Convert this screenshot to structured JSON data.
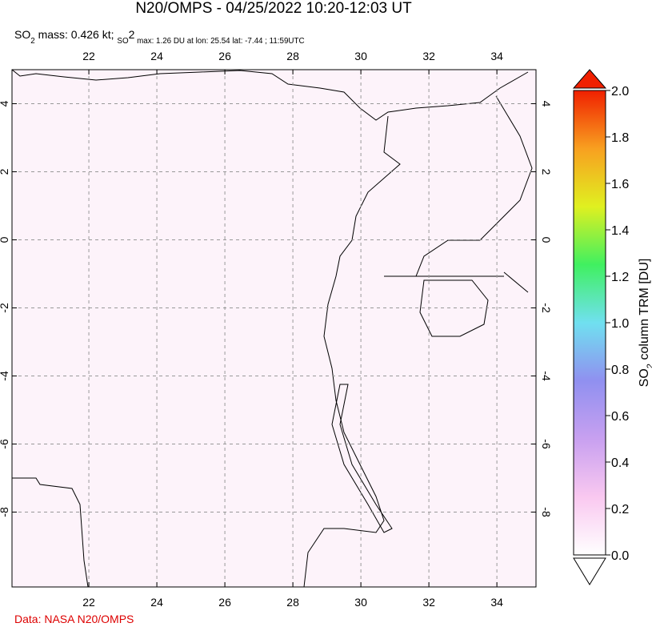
{
  "chart_data": {
    "type": "map",
    "title": "N20/OMPS - 04/25/2022 10:20-12:03 UT",
    "subtitle": [
      "SO",
      "2",
      " mass: 0.426 kt; ",
      "SO",
      "2",
      " max: 1.26 DU at lon: 25.54 lat: -7.44 ; 11:59UTC"
    ],
    "xlim": [
      19.74,
      35.15
    ],
    "ylim": [
      -10.2,
      5
    ],
    "xticks": [
      22,
      24,
      26,
      28,
      30,
      32,
      34
    ],
    "yticks": [
      -8,
      -6,
      -4,
      -2,
      0,
      2,
      4
    ],
    "grid": true,
    "colorbar": {
      "label": [
        "SO",
        "2",
        " column TRM [DU]"
      ],
      "lim": [
        0,
        2
      ],
      "ticks": [
        {
          "value": 0,
          "label": "0.0"
        },
        {
          "value": 0.2,
          "label": "0.2"
        },
        {
          "value": 0.4,
          "label": "0.4"
        },
        {
          "value": 0.6,
          "label": "0.6"
        },
        {
          "value": 0.8,
          "label": "0.8"
        },
        {
          "value": 1,
          "label": "1.0"
        },
        {
          "value": 1.2,
          "label": "1.2"
        },
        {
          "value": 1.4,
          "label": "1.4"
        },
        {
          "value": 1.6,
          "label": "1.6"
        },
        {
          "value": 1.8,
          "label": "1.8"
        },
        {
          "value": 2,
          "label": "2.0"
        }
      ],
      "colors": [
        "#ffffff",
        "#f9c8f0",
        "#c8a0f0",
        "#9090f0",
        "#70e0f0",
        "#40f060",
        "#e0f020",
        "#f8a020",
        "#f02000"
      ]
    }
  },
  "credit": "Data: NASA N20/OMPS"
}
